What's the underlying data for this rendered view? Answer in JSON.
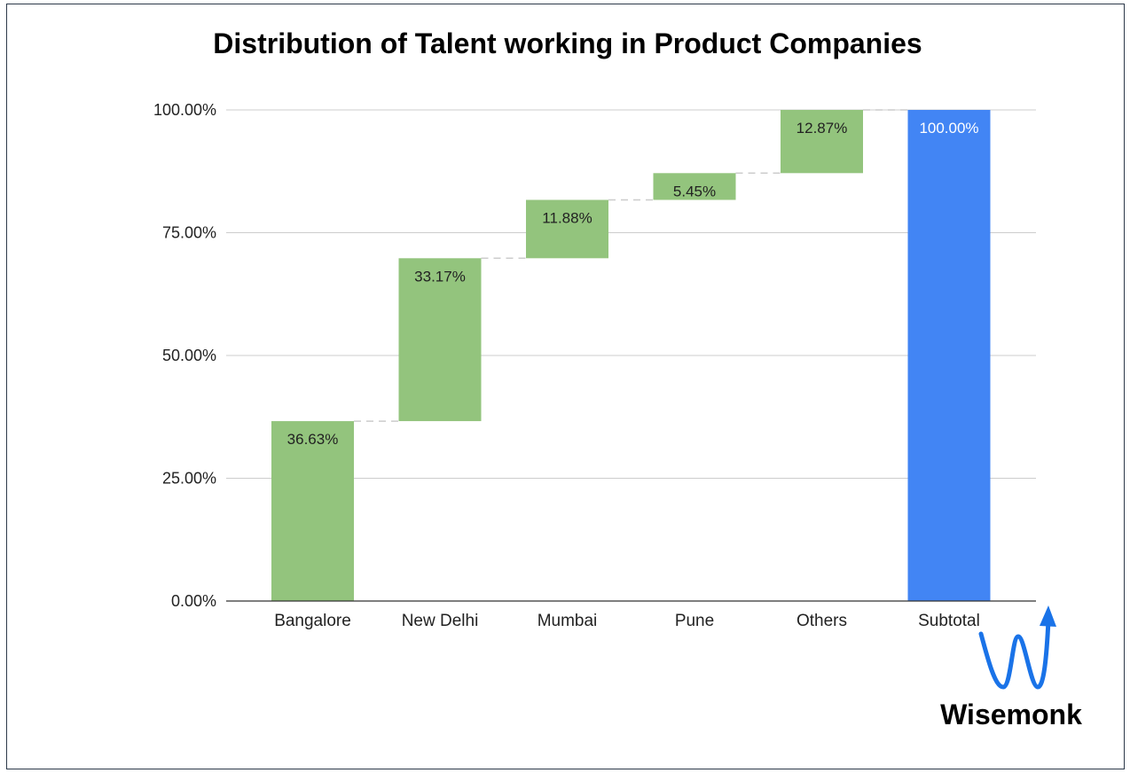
{
  "chart_data": {
    "type": "bar",
    "subtype": "waterfall",
    "title": "Distribution of Talent working in Product Companies",
    "xlabel": "",
    "ylabel": "",
    "ylim": [
      0,
      100
    ],
    "yticks": [
      0,
      25,
      50,
      75,
      100
    ],
    "ytick_labels": [
      "0.00%",
      "25.00%",
      "50.00%",
      "75.00%",
      "100.00%"
    ],
    "categories": [
      "Bangalore",
      "New Delhi",
      "Mumbai",
      "Pune",
      "Others",
      "Subtotal"
    ],
    "values": [
      36.63,
      33.17,
      11.88,
      5.45,
      12.87,
      100.0
    ],
    "labels": [
      "36.63%",
      "33.17%",
      "11.88%",
      "5.45%",
      "12.87%",
      "100.00%"
    ],
    "is_total": [
      false,
      false,
      false,
      false,
      false,
      true
    ],
    "grid": true,
    "colors": {
      "increase": "#93c47d",
      "total": "#4285f4",
      "grid": "#cccccc",
      "connector": "#cccccc"
    }
  },
  "brand": {
    "name": "Wisemonk",
    "color": "#1a73e8"
  }
}
